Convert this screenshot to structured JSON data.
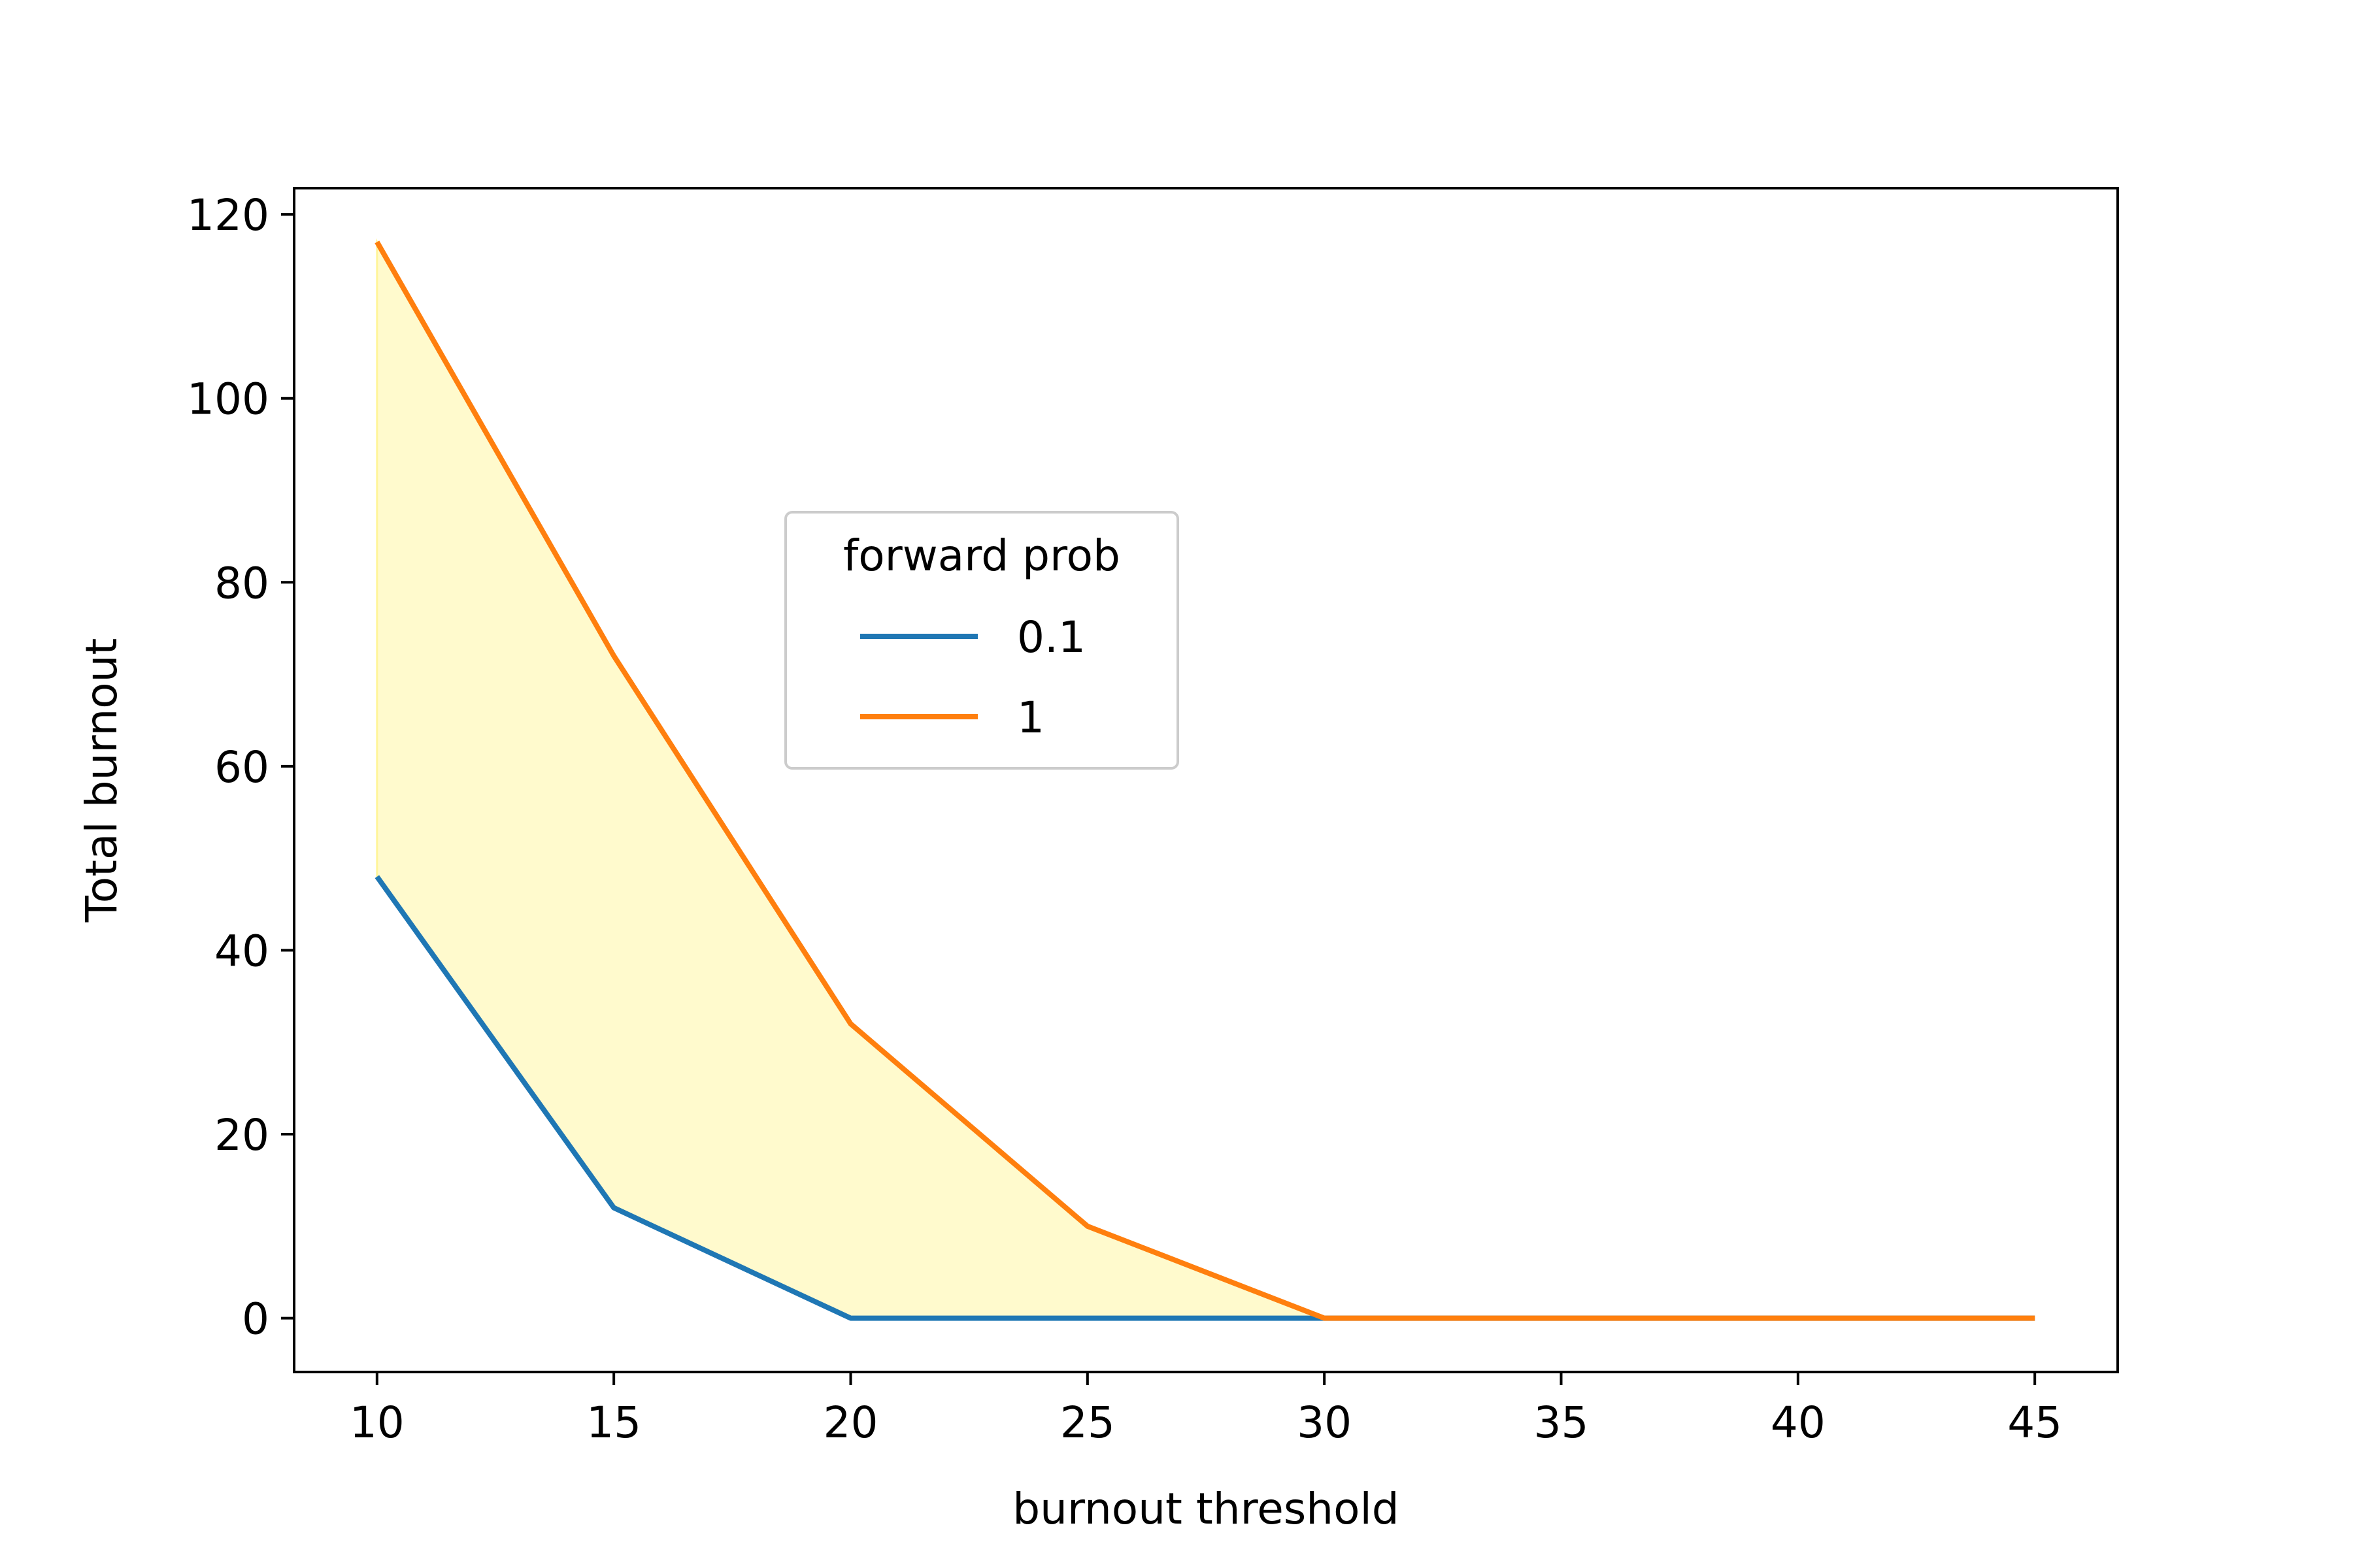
{
  "chart_data": {
    "type": "line",
    "title": "",
    "xlabel": "burnout threshold",
    "ylabel": "Total burnout",
    "x": [
      10,
      15,
      20,
      25,
      30,
      35,
      40,
      45
    ],
    "series": [
      {
        "name": "0.1",
        "color": "#1f77b4",
        "values": [
          48,
          12,
          0,
          0,
          0,
          0,
          0,
          0
        ]
      },
      {
        "name": "1",
        "color": "#ff7f0e",
        "values": [
          117,
          72,
          32,
          10,
          0,
          0,
          0,
          0
        ]
      }
    ],
    "fill_between": {
      "lower_series": "0.1",
      "upper_series": "1",
      "color": "#fffacd"
    },
    "xlim": [
      8.25,
      46.75
    ],
    "ylim": [
      -5.85,
      122.85
    ],
    "xticks": [
      10,
      15,
      20,
      25,
      30,
      35,
      40,
      45
    ],
    "yticks": [
      0,
      20,
      40,
      60,
      80,
      100,
      120
    ],
    "grid": false,
    "legend": {
      "title": "forward prob",
      "placement": "center-left"
    }
  }
}
